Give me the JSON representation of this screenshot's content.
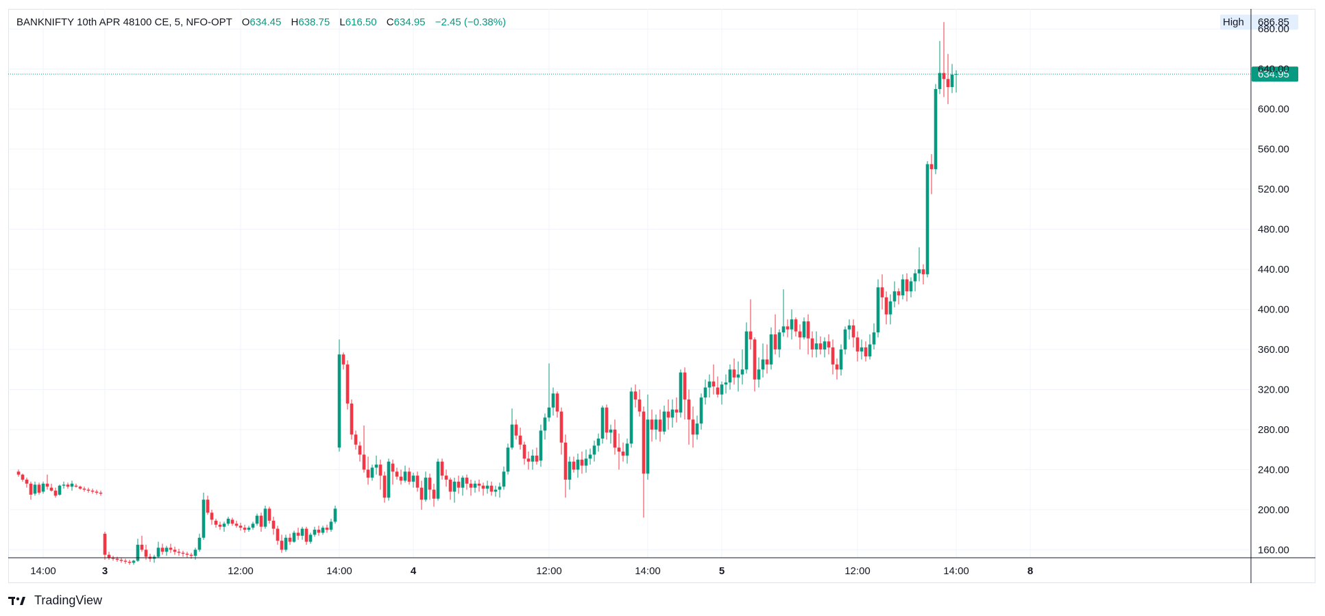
{
  "header": {
    "symbol": "BANKNIFTY 10th APR 48100 CE, 5, NFO-OPT",
    "open_label": "O",
    "open": "634.45",
    "high_label": "H",
    "high": "638.75",
    "low_label": "L",
    "low": "616.50",
    "close_label": "C",
    "close": "634.95",
    "change": "−2.45 (−0.38%)"
  },
  "branding": {
    "logo_text": "TradingView",
    "logo_mark": "𝟭𝟳",
    "icon": "tradingview-logo"
  },
  "colors": {
    "up": "#089981",
    "down": "#f23645",
    "grid": "#f0f3fa",
    "axis_text": "#131722",
    "badge_bg": "#089981",
    "high_badge_bg": "#e3effd"
  },
  "chart_data": {
    "type": "candlestick",
    "ylim": [
      152,
      700
    ],
    "y_ticks": [
      160,
      200,
      240,
      280,
      320,
      360,
      400,
      440,
      480,
      520,
      560,
      600,
      640,
      680
    ],
    "y_tick_labels": [
      "160.00",
      "200.00",
      "240.00",
      "280.00",
      "320.00",
      "360.00",
      "400.00",
      "440.00",
      "480.00",
      "520.00",
      "560.00",
      "600.00",
      "640.00",
      "680.00"
    ],
    "x_ticks": [
      {
        "label": "14:00",
        "bar": -15,
        "bold": false
      },
      {
        "label": "3",
        "bar": 0,
        "bold": true
      },
      {
        "label": "12:00",
        "bar": 33,
        "bold": false
      },
      {
        "label": "14:00",
        "bar": 57,
        "bold": false
      },
      {
        "label": "4",
        "bar": 75,
        "bold": true
      },
      {
        "label": "12:00",
        "bar": 108,
        "bold": false
      },
      {
        "label": "14:00",
        "bar": 132,
        "bold": false
      },
      {
        "label": "5",
        "bar": 150,
        "bold": true
      },
      {
        "label": "12:00",
        "bar": 183,
        "bold": false
      },
      {
        "label": "14:00",
        "bar": 207,
        "bold": false
      },
      {
        "label": "8",
        "bar": 225,
        "bold": true
      }
    ],
    "last_price": 634.95,
    "last_price_label": "634.95",
    "high_label": "High",
    "high_value": 686.85,
    "high_value_label": "686.85",
    "bar_start": -21,
    "candles": [
      [
        238,
        240,
        233,
        235
      ],
      [
        235,
        236,
        228,
        230
      ],
      [
        230,
        232,
        222,
        226
      ],
      [
        226,
        228,
        210,
        215
      ],
      [
        216,
        228,
        214,
        225
      ],
      [
        225,
        227,
        215,
        217
      ],
      [
        218,
        228,
        216,
        226
      ],
      [
        226,
        235,
        220,
        223
      ],
      [
        222,
        226,
        218,
        219
      ],
      [
        219,
        222,
        212,
        214
      ],
      [
        215,
        225,
        214,
        224
      ],
      [
        224,
        228,
        221,
        225
      ],
      [
        225,
        227,
        221,
        223
      ],
      [
        223,
        229,
        219,
        226
      ],
      [
        224,
        226,
        222,
        223
      ],
      [
        223,
        224,
        220,
        221
      ],
      [
        221,
        223,
        218,
        220
      ],
      [
        220,
        222,
        217,
        219
      ],
      [
        219,
        221,
        216,
        218
      ],
      [
        218,
        220,
        215,
        217
      ],
      [
        217,
        219,
        214,
        216
      ],
      [
        176,
        178,
        150,
        155
      ],
      [
        155,
        158,
        150,
        152
      ],
      [
        152,
        154,
        149,
        151
      ],
      [
        151,
        153,
        148,
        150
      ],
      [
        150,
        152,
        147,
        149
      ],
      [
        149,
        151,
        146,
        148
      ],
      [
        148,
        150,
        145,
        147
      ],
      [
        147,
        150,
        145,
        149
      ],
      [
        149,
        171,
        148,
        165
      ],
      [
        165,
        174,
        158,
        160
      ],
      [
        160,
        165,
        150,
        153
      ],
      [
        153,
        156,
        148,
        151
      ],
      [
        151,
        155,
        147,
        153
      ],
      [
        153,
        168,
        152,
        162
      ],
      [
        162,
        166,
        155,
        158
      ],
      [
        158,
        164,
        154,
        162
      ],
      [
        162,
        166,
        157,
        160
      ],
      [
        160,
        163,
        155,
        158
      ],
      [
        158,
        161,
        154,
        157
      ],
      [
        157,
        159,
        153,
        156
      ],
      [
        156,
        158,
        152,
        155
      ],
      [
        155,
        157,
        151,
        154
      ],
      [
        154,
        162,
        150,
        160
      ],
      [
        160,
        176,
        158,
        172
      ],
      [
        172,
        217,
        170,
        210
      ],
      [
        210,
        214,
        195,
        197
      ],
      [
        197,
        200,
        185,
        190
      ],
      [
        189,
        191,
        182,
        185
      ],
      [
        185,
        188,
        180,
        183
      ],
      [
        183,
        188,
        178,
        186
      ],
      [
        186,
        193,
        184,
        191
      ],
      [
        190,
        192,
        184,
        186
      ],
      [
        186,
        189,
        182,
        184
      ],
      [
        184,
        187,
        179,
        182
      ],
      [
        182,
        185,
        177,
        180
      ],
      [
        180,
        184,
        178,
        182
      ],
      [
        182,
        188,
        180,
        186
      ],
      [
        186,
        196,
        184,
        194
      ],
      [
        194,
        197,
        178,
        183
      ],
      [
        183,
        204,
        181,
        201
      ],
      [
        201,
        203,
        186,
        189
      ],
      [
        189,
        193,
        175,
        181
      ],
      [
        181,
        184,
        165,
        169
      ],
      [
        169,
        175,
        157,
        160
      ],
      [
        160,
        175,
        158,
        172
      ],
      [
        172,
        176,
        165,
        168
      ],
      [
        168,
        179,
        167,
        177
      ],
      [
        177,
        182,
        170,
        174
      ],
      [
        174,
        183,
        170,
        181
      ],
      [
        181,
        183,
        165,
        168
      ],
      [
        168,
        177,
        166,
        175
      ],
      [
        175,
        183,
        173,
        180
      ],
      [
        180,
        184,
        174,
        177
      ],
      [
        177,
        184,
        175,
        182
      ],
      [
        182,
        185,
        177,
        180
      ],
      [
        180,
        191,
        178,
        188
      ],
      [
        188,
        204,
        186,
        201
      ],
      [
        262,
        370,
        258,
        355
      ],
      [
        355,
        357,
        340,
        345
      ],
      [
        345,
        349,
        300,
        306
      ],
      [
        306,
        310,
        270,
        275
      ],
      [
        275,
        279,
        260,
        265
      ],
      [
        264,
        268,
        248,
        255
      ],
      [
        255,
        284,
        237,
        240
      ],
      [
        240,
        253,
        225,
        232
      ],
      [
        232,
        245,
        229,
        242
      ],
      [
        242,
        254,
        235,
        245
      ],
      [
        245,
        250,
        220,
        234
      ],
      [
        234,
        238,
        207,
        212
      ],
      [
        212,
        251,
        209,
        248
      ],
      [
        246,
        250,
        225,
        238
      ],
      [
        238,
        242,
        230,
        233
      ],
      [
        233,
        240,
        225,
        229
      ],
      [
        229,
        244,
        227,
        238
      ],
      [
        238,
        242,
        225,
        228
      ],
      [
        228,
        237,
        222,
        234
      ],
      [
        234,
        238,
        218,
        222
      ],
      [
        222,
        229,
        200,
        210
      ],
      [
        210,
        238,
        208,
        232
      ],
      [
        232,
        236,
        210,
        220
      ],
      [
        220,
        226,
        203,
        211
      ],
      [
        211,
        251,
        209,
        248
      ],
      [
        248,
        251,
        230,
        234
      ],
      [
        234,
        240,
        223,
        230
      ],
      [
        230,
        232,
        210,
        218
      ],
      [
        218,
        232,
        207,
        228
      ],
      [
        228,
        234,
        216,
        222
      ],
      [
        222,
        234,
        214,
        232
      ],
      [
        232,
        235,
        220,
        226
      ],
      [
        226,
        230,
        214,
        222
      ],
      [
        222,
        229,
        217,
        226
      ],
      [
        226,
        230,
        218,
        224
      ],
      [
        224,
        227,
        214,
        221
      ],
      [
        221,
        229,
        216,
        224
      ],
      [
        224,
        228,
        214,
        218
      ],
      [
        218,
        224,
        213,
        220
      ],
      [
        220,
        227,
        212,
        223
      ],
      [
        223,
        243,
        220,
        238
      ],
      [
        238,
        266,
        235,
        262
      ],
      [
        262,
        301,
        260,
        285
      ],
      [
        285,
        290,
        270,
        274
      ],
      [
        274,
        282,
        260,
        265
      ],
      [
        265,
        268,
        245,
        251
      ],
      [
        251,
        258,
        240,
        248
      ],
      [
        248,
        260,
        240,
        254
      ],
      [
        254,
        262,
        245,
        248
      ],
      [
        249,
        285,
        243,
        279
      ],
      [
        279,
        296,
        270,
        292
      ],
      [
        292,
        346,
        288,
        302
      ],
      [
        302,
        322,
        294,
        316
      ],
      [
        316,
        318,
        292,
        298
      ],
      [
        298,
        302,
        255,
        267
      ],
      [
        267,
        275,
        212,
        230
      ],
      [
        230,
        253,
        220,
        248
      ],
      [
        248,
        253,
        237,
        240
      ],
      [
        240,
        256,
        232,
        250
      ],
      [
        250,
        258,
        236,
        244
      ],
      [
        244,
        260,
        237,
        251
      ],
      [
        251,
        261,
        245,
        255
      ],
      [
        255,
        269,
        248,
        264
      ],
      [
        264,
        276,
        258,
        271
      ],
      [
        271,
        304,
        266,
        302
      ],
      [
        302,
        305,
        270,
        277
      ],
      [
        277,
        285,
        266,
        280
      ],
      [
        280,
        290,
        255,
        262
      ],
      [
        262,
        276,
        240,
        258
      ],
      [
        258,
        267,
        248,
        254
      ],
      [
        254,
        271,
        246,
        266
      ],
      [
        266,
        322,
        262,
        318
      ],
      [
        318,
        325,
        302,
        310
      ],
      [
        310,
        320,
        293,
        298
      ],
      [
        298,
        303,
        192,
        236
      ],
      [
        236,
        315,
        230,
        290
      ],
      [
        290,
        300,
        268,
        280
      ],
      [
        280,
        295,
        270,
        290
      ],
      [
        290,
        300,
        268,
        278
      ],
      [
        278,
        304,
        275,
        298
      ],
      [
        298,
        310,
        280,
        292
      ],
      [
        292,
        310,
        282,
        300
      ],
      [
        300,
        312,
        287,
        297
      ],
      [
        297,
        340,
        292,
        337
      ],
      [
        337,
        342,
        290,
        310
      ],
      [
        310,
        320,
        265,
        290
      ],
      [
        290,
        303,
        262,
        275
      ],
      [
        275,
        294,
        270,
        286
      ],
      [
        286,
        316,
        280,
        312
      ],
      [
        312,
        330,
        305,
        322
      ],
      [
        322,
        335,
        312,
        328
      ],
      [
        328,
        345,
        315,
        323
      ],
      [
        322,
        333,
        312,
        315
      ],
      [
        315,
        328,
        305,
        325
      ],
      [
        325,
        335,
        316,
        327
      ],
      [
        327,
        345,
        320,
        340
      ],
      [
        340,
        351,
        325,
        332
      ],
      [
        332,
        348,
        318,
        335
      ],
      [
        335,
        360,
        325,
        340
      ],
      [
        340,
        387,
        336,
        378
      ],
      [
        378,
        410,
        360,
        370
      ],
      [
        370,
        372,
        318,
        330
      ],
      [
        330,
        352,
        322,
        340
      ],
      [
        340,
        366,
        332,
        350
      ],
      [
        350,
        365,
        336,
        345
      ],
      [
        345,
        382,
        340,
        375
      ],
      [
        375,
        395,
        355,
        360
      ],
      [
        360,
        380,
        352,
        377
      ],
      [
        377,
        420,
        373,
        383
      ],
      [
        383,
        390,
        372,
        380
      ],
      [
        380,
        400,
        370,
        390
      ],
      [
        390,
        392,
        373,
        378
      ],
      [
        378,
        385,
        360,
        372
      ],
      [
        372,
        392,
        370,
        388
      ],
      [
        388,
        395,
        355,
        371
      ],
      [
        371,
        378,
        352,
        360
      ],
      [
        360,
        378,
        352,
        366
      ],
      [
        366,
        373,
        355,
        360
      ],
      [
        360,
        372,
        352,
        368
      ],
      [
        368,
        375,
        355,
        362
      ],
      [
        362,
        370,
        335,
        345
      ],
      [
        345,
        351,
        330,
        340
      ],
      [
        340,
        365,
        334,
        360
      ],
      [
        360,
        383,
        355,
        380
      ],
      [
        380,
        390,
        370,
        384
      ],
      [
        384,
        390,
        362,
        372
      ],
      [
        372,
        378,
        348,
        358
      ],
      [
        358,
        370,
        350,
        362
      ],
      [
        362,
        368,
        348,
        353
      ],
      [
        353,
        375,
        350,
        365
      ],
      [
        365,
        386,
        360,
        377
      ],
      [
        377,
        430,
        372,
        422
      ],
      [
        422,
        435,
        400,
        412
      ],
      [
        412,
        418,
        385,
        395
      ],
      [
        395,
        415,
        385,
        408
      ],
      [
        408,
        428,
        402,
        418
      ],
      [
        418,
        421,
        405,
        414
      ],
      [
        414,
        435,
        410,
        430
      ],
      [
        430,
        436,
        408,
        418
      ],
      [
        418,
        432,
        412,
        428
      ],
      [
        428,
        440,
        418,
        436
      ],
      [
        436,
        462,
        428,
        440
      ],
      [
        440,
        445,
        425,
        435
      ],
      [
        435,
        548,
        432,
        545
      ],
      [
        545,
        555,
        515,
        540
      ],
      [
        540,
        625,
        535,
        620
      ],
      [
        620,
        668,
        615,
        636
      ],
      [
        636,
        686.85,
        612,
        630
      ],
      [
        630,
        655,
        605,
        622
      ],
      [
        622,
        645,
        616,
        634.45
      ],
      [
        634.45,
        638.75,
        616.5,
        634.95
      ]
    ]
  }
}
